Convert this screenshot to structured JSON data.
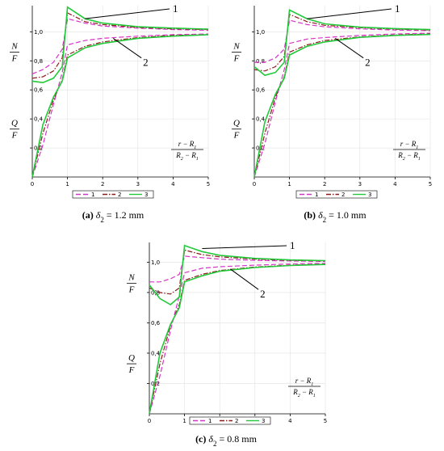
{
  "chart_data": [
    {
      "type": "line",
      "caption": {
        "label": "(a)",
        "symbol": "δ",
        "subscript": "2",
        "value": "= 1.2",
        "unit": "mm"
      },
      "xlim": [
        0,
        5
      ],
      "ylim": [
        0,
        1.18
      ],
      "xticks": [
        "0",
        "1",
        "2",
        "3",
        "4",
        "5"
      ],
      "yticks": [
        "0,2",
        "0,4",
        "0,6",
        "0,8",
        "1,0"
      ],
      "ylabels": {
        "top": {
          "num": "N",
          "den": "F"
        },
        "bottom": {
          "num": "Q",
          "den": "F"
        }
      },
      "xlabel": {
        "num": "r − R",
        "num_sub": "1",
        "den_a": "R",
        "den_a_sub": "2",
        "den_b": "R",
        "den_b_sub": "1"
      },
      "legend": [
        "1",
        "2",
        "3"
      ],
      "annotations": [
        "1",
        "2"
      ],
      "series": [
        {
          "name": "1",
          "style": "dash",
          "color": "#d633c8",
          "x": [
            0,
            0.3,
            0.6,
            0.85,
            1.0,
            1.5,
            2,
            3,
            4,
            5
          ],
          "y": [
            0.71,
            0.74,
            0.79,
            0.88,
            1.09,
            1.06,
            1.04,
            1.025,
            1.015,
            1.01
          ]
        },
        {
          "name": "1",
          "style": "dash",
          "color": "#d633c8",
          "x": [
            0,
            0.3,
            0.6,
            0.85,
            1.0,
            1.5,
            2,
            3,
            4,
            5
          ],
          "y": [
            0.0,
            0.22,
            0.5,
            0.72,
            0.91,
            0.94,
            0.955,
            0.97,
            0.98,
            0.985
          ]
        },
        {
          "name": "2",
          "style": "dashdot",
          "color": "#8b1a1a",
          "x": [
            0,
            0.3,
            0.6,
            0.85,
            1.0,
            1.5,
            2,
            3,
            4,
            5
          ],
          "y": [
            0.68,
            0.69,
            0.73,
            0.82,
            1.13,
            1.07,
            1.05,
            1.03,
            1.02,
            1.015
          ]
        },
        {
          "name": "2",
          "style": "dashdot",
          "color": "#8b1a1a",
          "x": [
            0,
            0.3,
            0.6,
            0.85,
            1.0,
            1.5,
            2,
            3,
            4,
            5
          ],
          "y": [
            0.0,
            0.3,
            0.53,
            0.67,
            0.84,
            0.9,
            0.93,
            0.96,
            0.975,
            0.98
          ]
        },
        {
          "name": "3",
          "style": "solid",
          "color": "#22c93a",
          "x": [
            0,
            0.3,
            0.6,
            0.85,
            1.0,
            1.5,
            2,
            3,
            4,
            5
          ],
          "y": [
            0.66,
            0.65,
            0.68,
            0.76,
            1.17,
            1.09,
            1.06,
            1.035,
            1.025,
            1.018
          ]
        },
        {
          "name": "3",
          "style": "solid",
          "color": "#22c93a",
          "x": [
            0,
            0.3,
            0.6,
            0.85,
            1.0,
            1.5,
            2,
            3,
            4,
            5
          ],
          "y": [
            0.0,
            0.36,
            0.55,
            0.66,
            0.82,
            0.89,
            0.92,
            0.955,
            0.97,
            0.98
          ]
        }
      ]
    },
    {
      "type": "line",
      "caption": {
        "label": "(b)",
        "symbol": "δ",
        "subscript": "2",
        "value": "= 1.0",
        "unit": "mm"
      },
      "xlim": [
        0,
        5
      ],
      "ylim": [
        0,
        1.18
      ],
      "xticks": [
        "0",
        "1",
        "2",
        "3",
        "4",
        "5"
      ],
      "yticks": [
        "0,2",
        "0,4",
        "0,6",
        "0,8",
        "1,0"
      ],
      "ylabels": {
        "top": {
          "num": "N",
          "den": "F"
        },
        "bottom": {
          "num": "Q",
          "den": "F"
        }
      },
      "xlabel": {
        "num": "r − R",
        "num_sub": "1",
        "den_a": "R",
        "den_a_sub": "2",
        "den_b": "R",
        "den_b_sub": "1"
      },
      "legend": [
        "1",
        "2",
        "3"
      ],
      "annotations": [
        "1",
        "2"
      ],
      "series": [
        {
          "name": "1",
          "style": "dash",
          "color": "#d633c8",
          "x": [
            0,
            0.3,
            0.6,
            0.85,
            1.0,
            1.5,
            2,
            3,
            4,
            5
          ],
          "y": [
            0.79,
            0.79,
            0.82,
            0.88,
            1.08,
            1.05,
            1.035,
            1.02,
            1.012,
            1.008
          ]
        },
        {
          "name": "1",
          "style": "dash",
          "color": "#d633c8",
          "x": [
            0,
            0.3,
            0.6,
            0.85,
            1.0,
            1.5,
            2,
            3,
            4,
            5
          ],
          "y": [
            0.0,
            0.23,
            0.52,
            0.74,
            0.92,
            0.95,
            0.96,
            0.975,
            0.985,
            0.99
          ]
        },
        {
          "name": "2",
          "style": "dashdot",
          "color": "#8b1a1a",
          "x": [
            0,
            0.3,
            0.6,
            0.85,
            1.0,
            1.5,
            2,
            3,
            4,
            5
          ],
          "y": [
            0.74,
            0.73,
            0.76,
            0.83,
            1.12,
            1.07,
            1.045,
            1.028,
            1.018,
            1.012
          ]
        },
        {
          "name": "2",
          "style": "dashdot",
          "color": "#8b1a1a",
          "x": [
            0,
            0.3,
            0.6,
            0.85,
            1.0,
            1.5,
            2,
            3,
            4,
            5
          ],
          "y": [
            0.0,
            0.3,
            0.55,
            0.69,
            0.86,
            0.91,
            0.94,
            0.965,
            0.978,
            0.985
          ]
        },
        {
          "name": "3",
          "style": "solid",
          "color": "#22c93a",
          "x": [
            0,
            0.3,
            0.6,
            0.85,
            1.0,
            1.5,
            2,
            3,
            4,
            5
          ],
          "y": [
            0.76,
            0.7,
            0.72,
            0.79,
            1.15,
            1.09,
            1.055,
            1.032,
            1.022,
            1.015
          ]
        },
        {
          "name": "3",
          "style": "solid",
          "color": "#22c93a",
          "x": [
            0,
            0.3,
            0.6,
            0.85,
            1.0,
            1.5,
            2,
            3,
            4,
            5
          ],
          "y": [
            0.0,
            0.38,
            0.57,
            0.68,
            0.84,
            0.9,
            0.93,
            0.962,
            0.975,
            0.982
          ]
        }
      ]
    },
    {
      "type": "line",
      "caption": {
        "label": "(c)",
        "symbol": "δ",
        "subscript": "2",
        "value": "= 0.8",
        "unit": "mm"
      },
      "xlim": [
        0,
        5
      ],
      "ylim": [
        0,
        1.13
      ],
      "xticks": [
        "0",
        "1",
        "2",
        "3",
        "4",
        "5"
      ],
      "yticks": [
        "0,2",
        "0,4",
        "0,6",
        "0,8",
        "1,0"
      ],
      "ylabels": {
        "top": {
          "num": "N",
          "den": "F"
        },
        "bottom": {
          "num": "Q",
          "den": "F"
        }
      },
      "xlabel": {
        "num": "r − R",
        "num_sub": "1",
        "den_a": "R",
        "den_a_sub": "2",
        "den_b": "R",
        "den_b_sub": "1"
      },
      "legend": [
        "1",
        "2",
        "3"
      ],
      "annotations": [
        "1",
        "2"
      ],
      "series": [
        {
          "name": "1",
          "style": "dash",
          "color": "#d633c8",
          "x": [
            0,
            0.3,
            0.6,
            0.85,
            1.0,
            1.5,
            2,
            3,
            4,
            5
          ],
          "y": [
            0.87,
            0.87,
            0.89,
            0.92,
            1.04,
            1.03,
            1.02,
            1.012,
            1.008,
            1.005
          ]
        },
        {
          "name": "1",
          "style": "dash",
          "color": "#d633c8",
          "x": [
            0,
            0.3,
            0.6,
            0.85,
            1.0,
            1.5,
            2,
            3,
            4,
            5
          ],
          "y": [
            0.0,
            0.25,
            0.55,
            0.78,
            0.93,
            0.96,
            0.97,
            0.98,
            0.988,
            0.992
          ]
        },
        {
          "name": "2",
          "style": "dashdot",
          "color": "#8b1a1a",
          "x": [
            0,
            0.3,
            0.6,
            0.85,
            1.0,
            1.5,
            2,
            3,
            4,
            5
          ],
          "y": [
            0.83,
            0.8,
            0.79,
            0.83,
            1.08,
            1.05,
            1.035,
            1.02,
            1.012,
            1.008
          ]
        },
        {
          "name": "2",
          "style": "dashdot",
          "color": "#8b1a1a",
          "x": [
            0,
            0.3,
            0.6,
            0.85,
            1.0,
            1.5,
            2,
            3,
            4,
            5
          ],
          "y": [
            0.0,
            0.33,
            0.58,
            0.72,
            0.88,
            0.92,
            0.945,
            0.968,
            0.98,
            0.987
          ]
        },
        {
          "name": "3",
          "style": "solid",
          "color": "#22c93a",
          "x": [
            0,
            0.3,
            0.6,
            0.85,
            1.0,
            1.5,
            2,
            3,
            4,
            5
          ],
          "y": [
            0.85,
            0.76,
            0.72,
            0.77,
            1.11,
            1.07,
            1.045,
            1.025,
            1.015,
            1.01
          ]
        },
        {
          "name": "3",
          "style": "solid",
          "color": "#22c93a",
          "x": [
            0,
            0.3,
            0.6,
            0.85,
            1.0,
            1.5,
            2,
            3,
            4,
            5
          ],
          "y": [
            0.0,
            0.4,
            0.59,
            0.7,
            0.87,
            0.91,
            0.94,
            0.965,
            0.978,
            0.985
          ]
        }
      ]
    }
  ]
}
